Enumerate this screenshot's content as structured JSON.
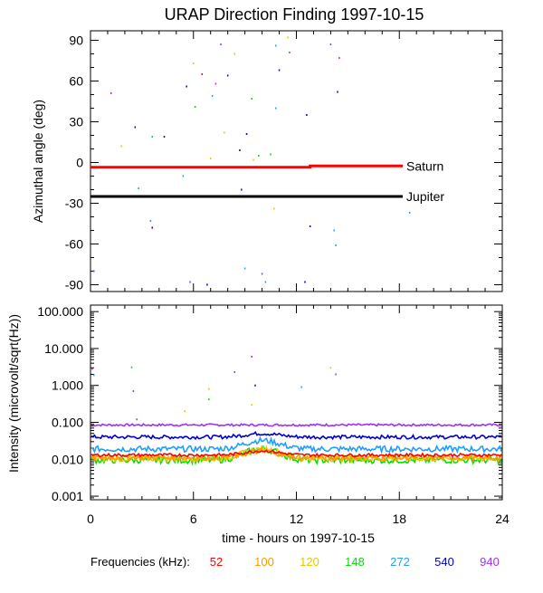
{
  "chart_data": [
    {
      "type": "scatter",
      "title": "URAP Direction Finding  1997-10-15",
      "ylabel": "Azimuthal angle (deg)",
      "xlim": [
        0,
        24
      ],
      "ylim": [
        -95,
        97
      ],
      "y_ticks": [
        90,
        60,
        30,
        0,
        -30,
        -60,
        -90
      ],
      "y_tick_labels": [
        "90",
        "60",
        "30",
        "0",
        "-30",
        "-60",
        "-90"
      ],
      "grid": false,
      "lines": [
        {
          "name": "Saturn",
          "color": "#ff0000",
          "x": [
            0,
            12.8,
            12.8,
            18.2
          ],
          "y": [
            -3.5,
            -3.5,
            -2.5,
            -2.5
          ]
        },
        {
          "name": "Jupiter",
          "color": "#000000",
          "x": [
            0,
            18.2
          ],
          "y": [
            -25,
            -25
          ]
        }
      ],
      "points": [
        {
          "x": 1.2,
          "y": 51,
          "c": "#9b30ff"
        },
        {
          "x": 1.8,
          "y": 12,
          "c": "#e6c700"
        },
        {
          "x": 2.6,
          "y": 26,
          "c": "#0000d0"
        },
        {
          "x": 2.8,
          "y": -19,
          "c": "#1e9fff"
        },
        {
          "x": 3.5,
          "y": -43,
          "c": "#1e9fff"
        },
        {
          "x": 3.6,
          "y": 19,
          "c": "#1e9fff"
        },
        {
          "x": 3.6,
          "y": -48,
          "c": "#0000d0"
        },
        {
          "x": 4.3,
          "y": 19,
          "c": "#0000d0"
        },
        {
          "x": 5.4,
          "y": -10,
          "c": "#1e9fff"
        },
        {
          "x": 5.6,
          "y": 56,
          "c": "#0000d0"
        },
        {
          "x": 5.8,
          "y": -88,
          "c": "#9b30ff"
        },
        {
          "x": 6.0,
          "y": 73,
          "c": "#e6c700"
        },
        {
          "x": 6.1,
          "y": 41,
          "c": "#00e000"
        },
        {
          "x": 6.5,
          "y": 65,
          "c": "#ff0000"
        },
        {
          "x": 6.8,
          "y": -90,
          "c": "#0000d0"
        },
        {
          "x": 7.0,
          "y": 3,
          "c": "#e6c700"
        },
        {
          "x": 7.1,
          "y": 49,
          "c": "#1e9fff"
        },
        {
          "x": 7.3,
          "y": 58,
          "c": "#9b30ff"
        },
        {
          "x": 7.6,
          "y": 87,
          "c": "#9b30ff"
        },
        {
          "x": 7.8,
          "y": 22,
          "c": "#e6c700"
        },
        {
          "x": 8.0,
          "y": 64,
          "c": "#0000d0"
        },
        {
          "x": 8.4,
          "y": 80,
          "c": "#e6c700"
        },
        {
          "x": 8.7,
          "y": 9,
          "c": "#0000d0"
        },
        {
          "x": 8.8,
          "y": -20,
          "c": "#0000d0"
        },
        {
          "x": 9.0,
          "y": -78,
          "c": "#1e9fff"
        },
        {
          "x": 9.1,
          "y": 21,
          "c": "#0000d0"
        },
        {
          "x": 9.4,
          "y": 47,
          "c": "#00e000"
        },
        {
          "x": 9.5,
          "y": 2,
          "c": "#e6c700"
        },
        {
          "x": 9.8,
          "y": 5,
          "c": "#00e000"
        },
        {
          "x": 10.0,
          "y": -82,
          "c": "#9b30ff"
        },
        {
          "x": 10.2,
          "y": -88,
          "c": "#1e9fff"
        },
        {
          "x": 10.5,
          "y": 6,
          "c": "#00e000"
        },
        {
          "x": 10.7,
          "y": -34,
          "c": "#e6c700"
        },
        {
          "x": 10.8,
          "y": 86,
          "c": "#1e9fff"
        },
        {
          "x": 10.8,
          "y": 40,
          "c": "#1e9fff"
        },
        {
          "x": 11.0,
          "y": 68,
          "c": "#0000d0"
        },
        {
          "x": 11.5,
          "y": 92,
          "c": "#e6c700"
        },
        {
          "x": 11.6,
          "y": 81,
          "c": "#9b30ff"
        },
        {
          "x": 12.6,
          "y": 35,
          "c": "#0000d0"
        },
        {
          "x": 12.8,
          "y": -47,
          "c": "#0000d0"
        },
        {
          "x": 12.5,
          "y": -88,
          "c": "#0000d0"
        },
        {
          "x": 14.0,
          "y": 87,
          "c": "#9b30ff"
        },
        {
          "x": 14.2,
          "y": -50,
          "c": "#1e9fff"
        },
        {
          "x": 14.3,
          "y": -61,
          "c": "#1e9fff"
        },
        {
          "x": 14.4,
          "y": 52,
          "c": "#0000d0"
        },
        {
          "x": 14.5,
          "y": 77,
          "c": "#9b30ff"
        },
        {
          "x": 18.6,
          "y": -37,
          "c": "#1e9fff"
        },
        {
          "x": 0.2,
          "y": -80,
          "c": "#9b30ff"
        }
      ]
    },
    {
      "type": "line",
      "ylabel": "Intensity (microvolt/sqrt(Hz))",
      "xlabel": "time - hours on 1997-10-15",
      "xlim": [
        0,
        24
      ],
      "ylim": [
        0.0008,
        150
      ],
      "y_scale": "log",
      "x_ticks": [
        0,
        6,
        12,
        18,
        24
      ],
      "x_tick_labels": [
        "0",
        "6",
        "12",
        "18",
        "24"
      ],
      "y_ticks": [
        100,
        10,
        1,
        0.1,
        0.01,
        0.001
      ],
      "y_tick_labels": [
        "100.000",
        "10.000",
        "1.000",
        "0.100",
        "0.010",
        "0.001"
      ],
      "grid": false,
      "series": [
        {
          "freq": "940",
          "color": "#9b30ff",
          "level": 0.085,
          "bump": 0,
          "noise": 0.03
        },
        {
          "freq": "540",
          "color": "#0000d0",
          "level": 0.04,
          "bump": 0.25,
          "noise": 0.05
        },
        {
          "freq": "272",
          "color": "#1e9fff",
          "level": 0.019,
          "bump": 0.7,
          "noise": 0.08
        },
        {
          "freq": "148",
          "color": "#00e000",
          "level": 0.0095,
          "bump": 1.0,
          "noise": 0.09
        },
        {
          "freq": "120",
          "color": "#e6c700",
          "level": 0.0105,
          "bump": 0.8,
          "noise": 0.08
        },
        {
          "freq": "100",
          "color": "#ff9900",
          "level": 0.011,
          "bump": 0.5,
          "noise": 0.07
        },
        {
          "freq": "52",
          "color": "#ff0000",
          "level": 0.013,
          "bump": 0.3,
          "noise": 0.04
        }
      ],
      "outliers": [
        {
          "x": 0.1,
          "y": 2.8,
          "c": "#9b30ff"
        },
        {
          "x": 0.2,
          "y": 1.9,
          "c": "#1e9fff"
        },
        {
          "x": 2.4,
          "y": 3.1,
          "c": "#00e000"
        },
        {
          "x": 2.5,
          "y": 0.7,
          "c": "#9b30ff"
        },
        {
          "x": 2.7,
          "y": 0.12,
          "c": "#9b30ff"
        },
        {
          "x": 5.5,
          "y": 0.2,
          "c": "#e6c700"
        },
        {
          "x": 6.9,
          "y": 0.8,
          "c": "#e6c700"
        },
        {
          "x": 6.9,
          "y": 0.42,
          "c": "#00e000"
        },
        {
          "x": 8.4,
          "y": 2.3,
          "c": "#9b30ff"
        },
        {
          "x": 9.4,
          "y": 6.0,
          "c": "#9b30ff"
        },
        {
          "x": 9.4,
          "y": 0.3,
          "c": "#e6c700"
        },
        {
          "x": 9.6,
          "y": 1.0,
          "c": "#0000d0"
        },
        {
          "x": 12.3,
          "y": 0.9,
          "c": "#1e9fff"
        },
        {
          "x": 14.0,
          "y": 3.0,
          "c": "#e6c700"
        },
        {
          "x": 14.3,
          "y": 2.0,
          "c": "#9b30ff"
        }
      ]
    }
  ],
  "legend": {
    "label": "Frequencies (kHz):",
    "items": [
      {
        "text": "52",
        "color": "#ff0000"
      },
      {
        "text": "100",
        "color": "#ff9900"
      },
      {
        "text": "120",
        "color": "#e6c700"
      },
      {
        "text": "148",
        "color": "#00e000"
      },
      {
        "text": "272",
        "color": "#1e9fff"
      },
      {
        "text": "540",
        "color": "#0000d0"
      },
      {
        "text": "940",
        "color": "#9b30ff"
      }
    ]
  }
}
